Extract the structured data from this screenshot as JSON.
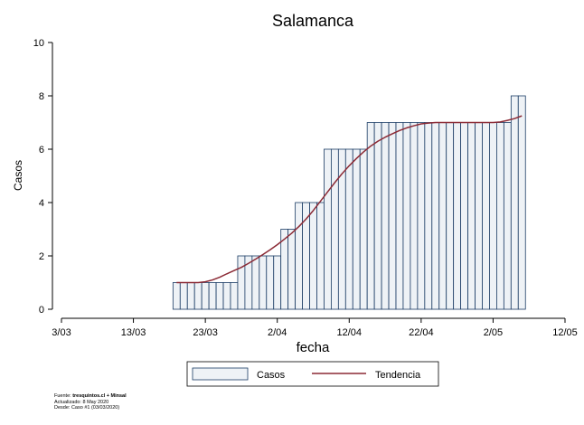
{
  "chart_data": {
    "type": "bar",
    "title": "Salamanca",
    "xlabel": "fecha",
    "ylabel": "Casos",
    "ylim": [
      0,
      10
    ],
    "yticks": [
      0,
      2,
      4,
      6,
      8,
      10
    ],
    "x_range": [
      "2020-03-03",
      "2020-05-12"
    ],
    "xticks": [
      "3/03",
      "13/03",
      "23/03",
      "2/04",
      "12/04",
      "22/04",
      "2/05",
      "12/05"
    ],
    "x": [
      "2020-03-19",
      "2020-03-20",
      "2020-03-21",
      "2020-03-22",
      "2020-03-23",
      "2020-03-24",
      "2020-03-25",
      "2020-03-26",
      "2020-03-27",
      "2020-03-28",
      "2020-03-29",
      "2020-03-30",
      "2020-03-31",
      "2020-04-01",
      "2020-04-02",
      "2020-04-03",
      "2020-04-04",
      "2020-04-05",
      "2020-04-06",
      "2020-04-07",
      "2020-04-08",
      "2020-04-09",
      "2020-04-10",
      "2020-04-11",
      "2020-04-12",
      "2020-04-13",
      "2020-04-14",
      "2020-04-15",
      "2020-04-16",
      "2020-04-17",
      "2020-04-18",
      "2020-04-19",
      "2020-04-20",
      "2020-04-21",
      "2020-04-22",
      "2020-04-23",
      "2020-04-24",
      "2020-04-25",
      "2020-04-26",
      "2020-04-27",
      "2020-04-28",
      "2020-04-29",
      "2020-04-30",
      "2020-05-01",
      "2020-05-02",
      "2020-05-03",
      "2020-05-04",
      "2020-05-05",
      "2020-05-06"
    ],
    "series": [
      {
        "name": "Casos",
        "values": [
          1,
          1,
          1,
          1,
          1,
          1,
          1,
          1,
          1,
          2,
          2,
          2,
          2,
          2,
          2,
          3,
          3,
          4,
          4,
          4,
          4,
          6,
          6,
          6,
          6,
          6,
          6,
          7,
          7,
          7,
          7,
          7,
          7,
          7,
          7,
          7,
          7,
          7,
          7,
          7,
          7,
          7,
          7,
          7,
          7,
          7,
          7,
          8,
          8
        ],
        "fill": "#eef2f6",
        "stroke": "#1a3b64"
      },
      {
        "name": "Tendencia",
        "kind": "line",
        "values": [
          1,
          1,
          1,
          1,
          1.03,
          1.1,
          1.2,
          1.33,
          1.45,
          1.57,
          1.72,
          1.88,
          2.05,
          2.23,
          2.42,
          2.63,
          2.85,
          3.1,
          3.38,
          3.7,
          4.05,
          4.4,
          4.75,
          5.08,
          5.38,
          5.65,
          5.9,
          6.12,
          6.3,
          6.45,
          6.58,
          6.7,
          6.8,
          6.88,
          6.95,
          6.98,
          7,
          7,
          7,
          7,
          7,
          7,
          7,
          7,
          7,
          7.02,
          7.08,
          7.15,
          7.25
        ],
        "color": "#8b2a35"
      }
    ],
    "legend": {
      "position": "bottom",
      "entries": [
        "Casos",
        "Tendencia"
      ]
    },
    "grid": false
  },
  "footer": {
    "source_label": "Fuente: ",
    "source_value": "tresquintos.cl + Minsal",
    "updated": "Actualizado: 8 May 2020",
    "since": "Desde: Caso #1  (03/03/2020)"
  }
}
